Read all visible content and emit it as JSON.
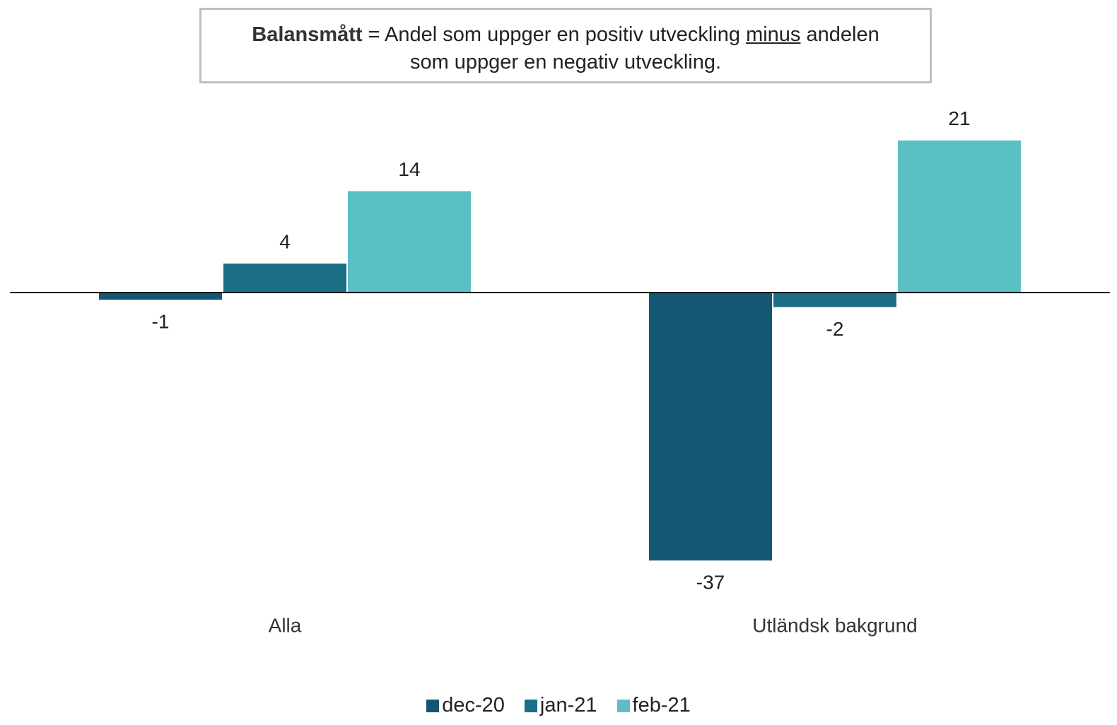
{
  "chart_data": {
    "type": "bar",
    "annotation": {
      "bold": "Balansmått",
      "text1": "= Andel som uppger en positiv utveckling",
      "underlined": "minus",
      "text2": "andelen",
      "text3": "som uppger en negativ utveckling."
    },
    "categories": [
      "Alla",
      "Utländsk bakgrund"
    ],
    "series": [
      {
        "name": "dec-20",
        "color": "#135773",
        "values": [
          -1,
          -37
        ]
      },
      {
        "name": "jan-21",
        "color": "#1b6e85",
        "values": [
          4,
          -2
        ]
      },
      {
        "name": "feb-21",
        "color": "#5bc0c5",
        "values": [
          14,
          21
        ]
      }
    ],
    "legend": "bottom"
  }
}
